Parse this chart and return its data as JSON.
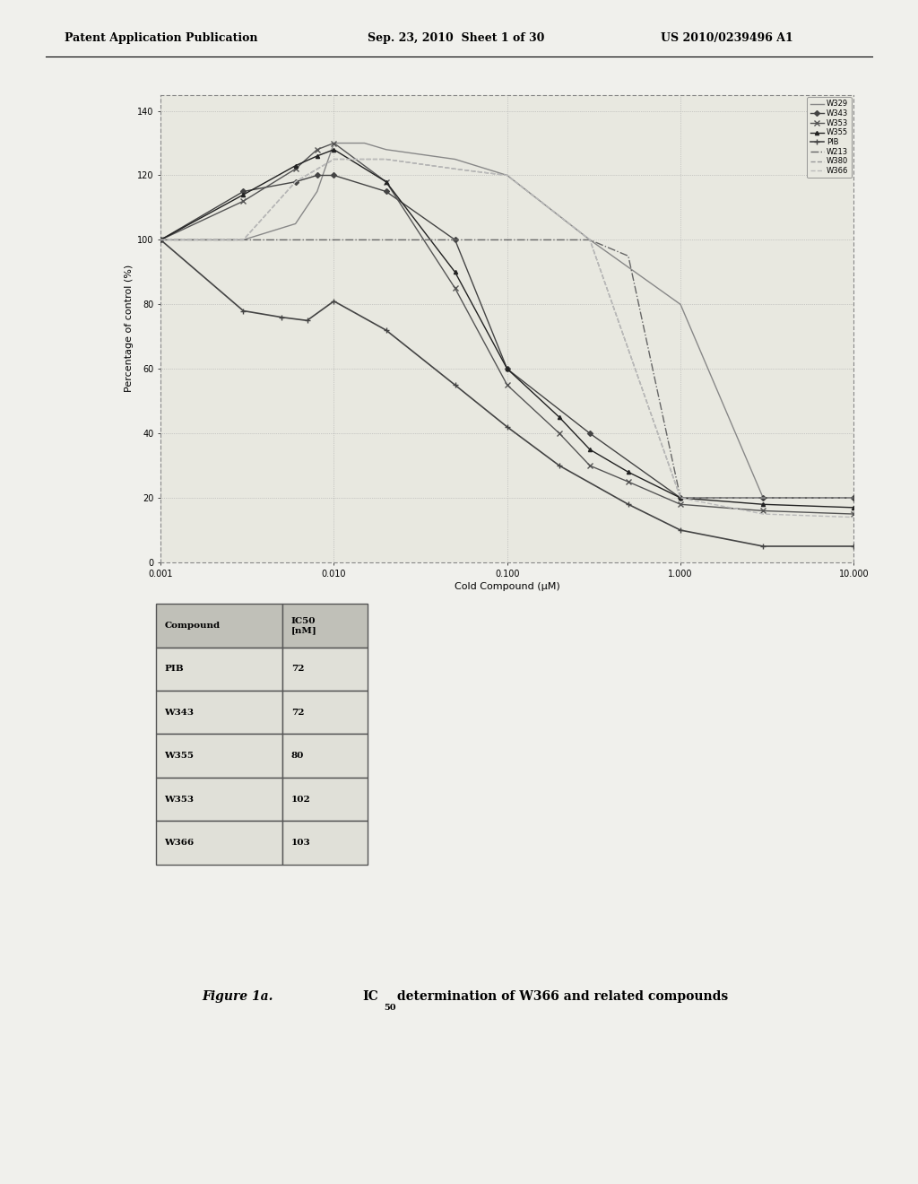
{
  "page_bg": "#d8d8d0",
  "content_bg": "#e8e8e0",
  "header_left": "Patent Application Publication",
  "header_mid": "Sep. 23, 2010  Sheet 1 of 30",
  "header_right": "US 2010/0239496 A1",
  "xlabel": "Cold Compound (μM)",
  "ylabel": "Percentage of control (%)",
  "yticks": [
    0,
    20,
    40,
    60,
    80,
    100,
    120,
    140
  ],
  "xtick_labels": [
    "0.001",
    "0.010",
    "0.100",
    "1.000",
    "10.000"
  ],
  "xtick_vals": [
    0.001,
    0.01,
    0.1,
    1.0,
    10.0
  ],
  "series_order": [
    "W329",
    "W343",
    "W353",
    "W355",
    "PIB",
    "W213",
    "W380",
    "W366"
  ],
  "series_data": {
    "W329": {
      "x": [
        0.001,
        0.003,
        0.006,
        0.008,
        0.01,
        0.015,
        0.02,
        0.05,
        0.1,
        0.3,
        1.0,
        3.0,
        10.0
      ],
      "y": [
        100,
        100,
        105,
        115,
        130,
        130,
        128,
        125,
        120,
        100,
        80,
        20,
        20
      ],
      "color": "#888888",
      "marker": null,
      "linestyle": "-",
      "lw": 1.0,
      "ms": 3
    },
    "W343": {
      "x": [
        0.001,
        0.003,
        0.006,
        0.008,
        0.01,
        0.02,
        0.05,
        0.1,
        0.3,
        1.0,
        3.0,
        10.0
      ],
      "y": [
        100,
        115,
        118,
        120,
        120,
        115,
        100,
        60,
        40,
        20,
        20,
        20
      ],
      "color": "#444444",
      "marker": "D",
      "linestyle": "-",
      "lw": 1.0,
      "ms": 3
    },
    "W353": {
      "x": [
        0.001,
        0.003,
        0.006,
        0.008,
        0.01,
        0.02,
        0.05,
        0.1,
        0.2,
        0.3,
        0.5,
        1.0,
        3.0,
        10.0
      ],
      "y": [
        100,
        112,
        122,
        128,
        130,
        118,
        85,
        55,
        40,
        30,
        25,
        18,
        16,
        15
      ],
      "color": "#555555",
      "marker": "x",
      "linestyle": "-",
      "lw": 1.0,
      "ms": 4
    },
    "W355": {
      "x": [
        0.001,
        0.003,
        0.006,
        0.008,
        0.01,
        0.02,
        0.05,
        0.1,
        0.2,
        0.3,
        0.5,
        1.0,
        3.0,
        10.0
      ],
      "y": [
        100,
        114,
        123,
        126,
        128,
        118,
        90,
        60,
        45,
        35,
        28,
        20,
        18,
        17
      ],
      "color": "#222222",
      "marker": "^",
      "linestyle": "-",
      "lw": 1.0,
      "ms": 3
    },
    "PIB": {
      "x": [
        0.001,
        0.003,
        0.005,
        0.007,
        0.01,
        0.02,
        0.05,
        0.1,
        0.2,
        0.5,
        1.0,
        3.0,
        10.0
      ],
      "y": [
        100,
        78,
        76,
        75,
        81,
        72,
        55,
        42,
        30,
        18,
        10,
        5,
        5
      ],
      "color": "#444444",
      "marker": "+",
      "linestyle": "-",
      "lw": 1.2,
      "ms": 5
    },
    "W213": {
      "x": [
        0.001,
        0.003,
        0.005,
        0.01,
        0.05,
        0.1,
        0.3,
        0.5,
        1.0,
        3.0,
        10.0
      ],
      "y": [
        100,
        100,
        100,
        100,
        100,
        100,
        100,
        95,
        20,
        20,
        20
      ],
      "color": "#666666",
      "marker": null,
      "linestyle": "-.",
      "lw": 1.0,
      "ms": 3
    },
    "W380": {
      "x": [
        0.001,
        0.003,
        0.006,
        0.01,
        0.02,
        0.05,
        0.1,
        0.3,
        1.0,
        3.0,
        10.0
      ],
      "y": [
        100,
        100,
        118,
        125,
        125,
        122,
        120,
        100,
        20,
        20,
        20
      ],
      "color": "#999999",
      "marker": null,
      "linestyle": "--",
      "lw": 1.0,
      "ms": 3
    },
    "W366": {
      "x": [
        0.001,
        0.003,
        0.006,
        0.01,
        0.02,
        0.05,
        0.1,
        0.3,
        1.0,
        3.0,
        10.0
      ],
      "y": [
        100,
        100,
        118,
        125,
        125,
        122,
        120,
        100,
        20,
        15,
        14
      ],
      "color": "#bbbbbb",
      "marker": null,
      "linestyle": "--",
      "lw": 1.0,
      "ms": 3
    }
  },
  "table_rows": [
    [
      "Compound",
      "IC50\n[nM]"
    ],
    [
      "PIB",
      "72"
    ],
    [
      "W343",
      "72"
    ],
    [
      "W355",
      "80"
    ],
    [
      "W353",
      "102"
    ],
    [
      "W366",
      "103"
    ]
  ],
  "caption_figure": "Figure 1a.",
  "caption_main": "IC",
  "caption_sub": "50",
  "caption_rest": " determination of W366 and related compounds"
}
